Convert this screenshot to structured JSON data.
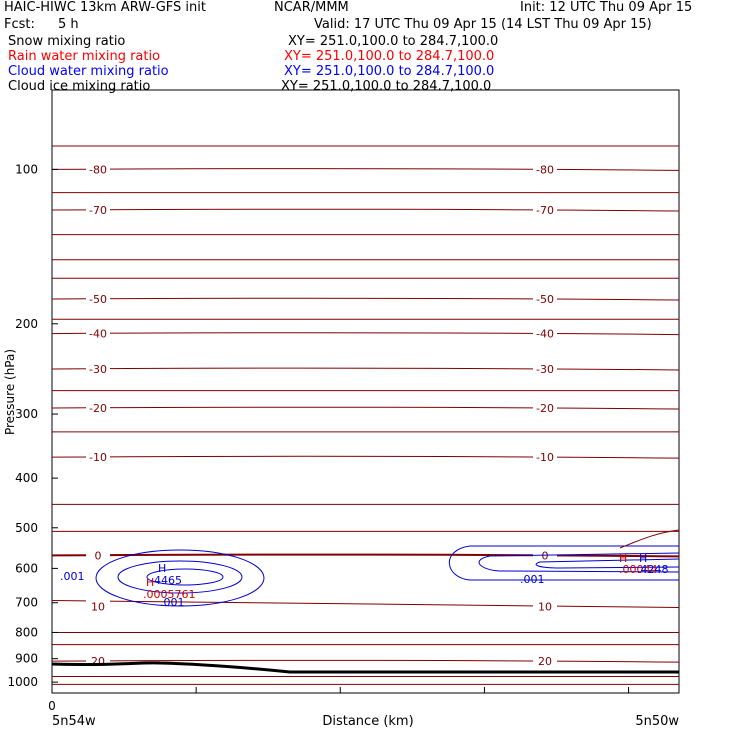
{
  "header": {
    "model": "HAIC-HIWC 13km ARW-GFS init",
    "center": "NCAR/MMM",
    "init": "Init: 12 UTC Thu 09 Apr 15",
    "fcst_label": "Fcst:",
    "fcst_value": "5 h",
    "valid": "Valid: 17 UTC Thu 09 Apr 15 (14 LST Thu 09 Apr 15)"
  },
  "fields": [
    {
      "name": "Snow mixing ratio",
      "xy": "XY= 251.0,100.0 to 284.7,100.0",
      "color": "#000000"
    },
    {
      "name": "Rain water mixing ratio",
      "xy": "XY= 251.0,100.0 to 284.7,100.0",
      "color": "#ff0000"
    },
    {
      "name": "Cloud water mixing ratio",
      "xy": "XY= 251.0,100.0 to 284.7,100.0",
      "color": "#0000ff"
    },
    {
      "name": "Cloud ice mixing ratio",
      "xy": "XY= 251.0,100.0 to 284.7,100.0",
      "color": "#000000"
    }
  ],
  "chart_data": {
    "type": "contour",
    "xlabel": "Distance (km)",
    "ylabel": "Pressure (hPa)",
    "x_range": [
      0,
      234
    ],
    "x_tick": "0",
    "x_left_label": "5n54w",
    "x_right_label": "5n50w",
    "ylim": [
      1050,
      70
    ],
    "y_scale": "log",
    "yticks": [
      100,
      200,
      300,
      400,
      500,
      600,
      700,
      800,
      900,
      1000
    ],
    "colors": {
      "temperature": "#800000",
      "cloud_water": "#0000cd",
      "rain": "#cc0000",
      "terrain": "#000000"
    },
    "temperature_isotherms": [
      {
        "label": "-80",
        "p": 100
      },
      {
        "label": "-70",
        "p": 120
      },
      {
        "label": "-50",
        "p": 179
      },
      {
        "label": "-40",
        "p": 209
      },
      {
        "label": "-30",
        "p": 245
      },
      {
        "label": "-20",
        "p": 292
      },
      {
        "label": "-10",
        "p": 364
      },
      {
        "label": "0",
        "p": 566
      },
      {
        "label": "10",
        "p": 712
      },
      {
        "label": "20",
        "p": 910
      }
    ],
    "cloud_water_labels": [
      ".001",
      "4465",
      ".001",
      ".001"
    ],
    "cloud_water_extrema": [
      "H",
      "H"
    ],
    "rain_labels": [
      ".0005761",
      ".00044"
    ],
    "rain_extrema": [
      "H",
      "H"
    ],
    "cloud_water_right_value": ".4248"
  }
}
